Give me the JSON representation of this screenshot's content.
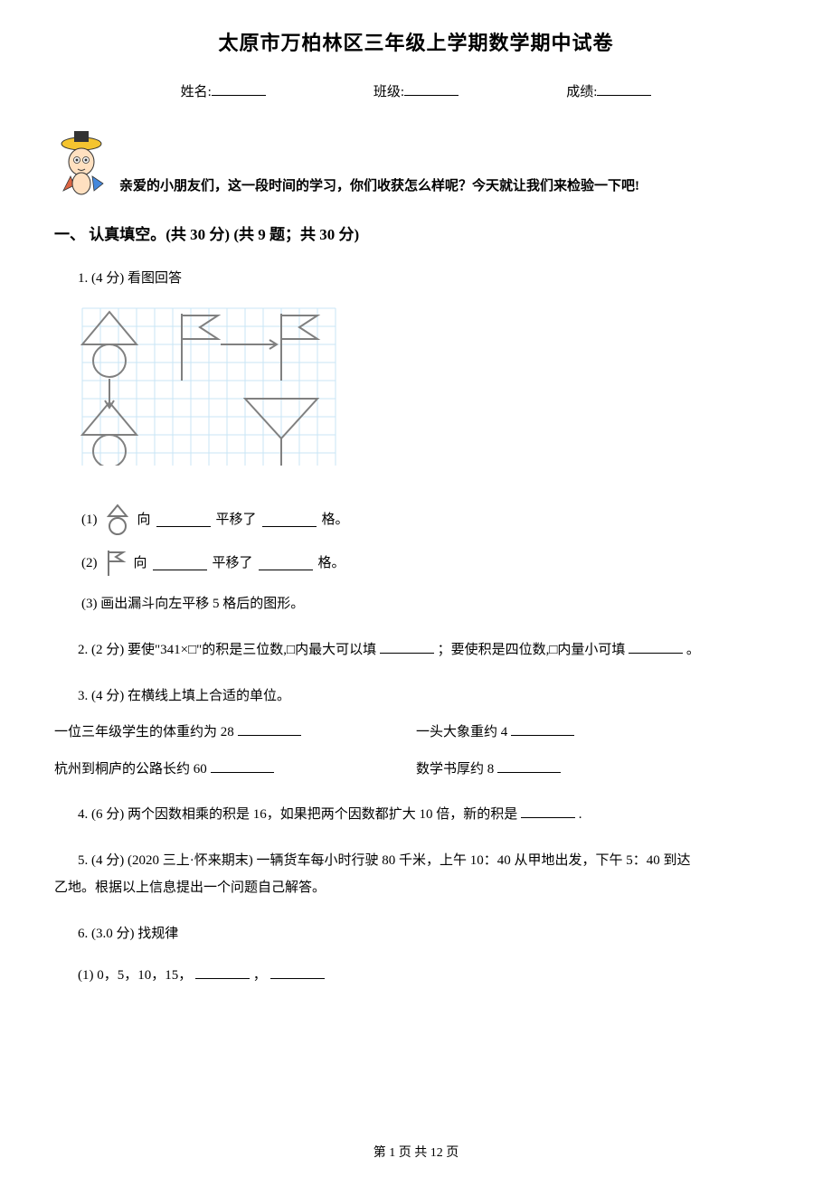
{
  "title": "太原市万柏林区三年级上学期数学期中试卷",
  "header": {
    "name_label": "姓名:",
    "class_label": "班级:",
    "score_label": "成绩:"
  },
  "intro": "亲爱的小朋友们，这一段时间的学习，你们收获怎么样呢？今天就让我们来检验一下吧!",
  "section1": {
    "heading": "一、 认真填空。(共 30 分)   (共 9 题；共 30 分)"
  },
  "q1": {
    "stem": "1.   (4 分)   看图回答",
    "sub1_prefix": "(1)  ",
    "sub1_mid1": "向",
    "sub1_mid2": "平移了",
    "sub1_suffix": "格。",
    "sub2_prefix": "(2)  ",
    "sub2_mid1": "向",
    "sub2_mid2": "平移了",
    "sub2_suffix": "格。",
    "sub3": "(3)   画出漏斗向左平移 5 格后的图形。"
  },
  "q2": {
    "text_a": "2.   (2 分)   要使\"341×□\"的积是三位数,□内最大可以填",
    "text_b": "；要使积是四位数,□内量小可填",
    "text_c": "。"
  },
  "q3": {
    "stem": "3.   (4 分)   在横线上填上合适的单位。",
    "r1c1": "一位三年级学生的体重约为 28",
    "r1c2": "一头大象重约 4",
    "r2c1": "杭州到桐庐的公路长约 60",
    "r2c2": "数学书厚约 8"
  },
  "q4": {
    "text_a": "4.   (6 分)   两个因数相乘的积是 16，如果把两个因数都扩大 10 倍，新的积是",
    "text_b": "."
  },
  "q5": {
    "line1": "5.   (4 分)   (2020 三上·怀来期末)  一辆货车每小时行驶 80 千米，上午 10：40 从甲地出发，下午 5：40 到达",
    "line2": "乙地。根据以上信息提出一个问题自己解答。"
  },
  "q6": {
    "stem": "6.   (3.0 分)   找规律",
    "sub1_a": "(1)   0，5，10，15，",
    "sub1_b": "，"
  },
  "footer": "第 1 页 共 12 页",
  "figure": {
    "grid_color": "#c9e6f5",
    "stroke_color": "#808080",
    "grid_cols": 14,
    "grid_rows": 9,
    "cell": 20
  }
}
